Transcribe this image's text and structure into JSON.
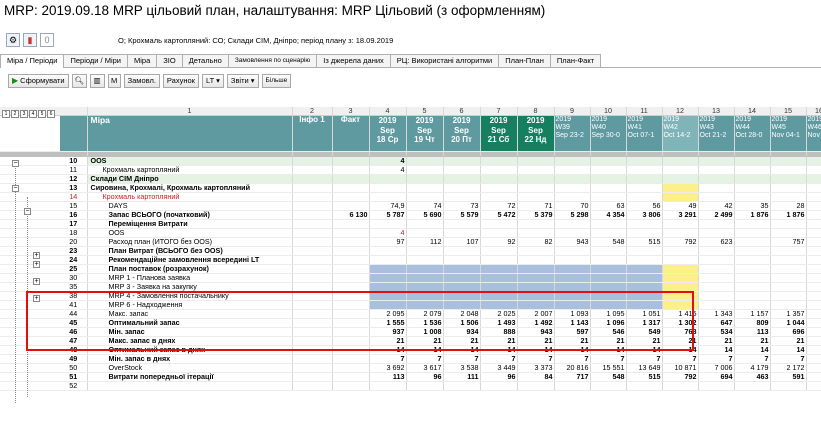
{
  "window": {
    "title": "MRP: 2019.09.18 MRP цільовий план, налаштування: MRP Цільовий (з оформленням)"
  },
  "toolbar_top": {
    "count": "0",
    "info": "О; Крохмаль картопляний: СО; Склади СІМ, Дніпро; період плану з: 18.09.2019"
  },
  "tabs": [
    "Міра / Періоди",
    "Періоди / Міри",
    "Міра",
    "ЗІО",
    "Детально",
    "Замовлення по сценарію",
    "Із джерела даних",
    "РЦ: Використані алгоритми",
    "План-План",
    "План-Факт"
  ],
  "toolbar2": {
    "form": "Сформувати",
    "order": "Замовл.",
    "invoice": "Рахунок",
    "lt": "LT",
    "reports": "Звіти",
    "more": "Більше"
  },
  "levels": [
    "1",
    "2",
    "3",
    "4",
    "5",
    "6"
  ],
  "grid": {
    "col_numbers": [
      "",
      "1",
      "2",
      "3",
      "4",
      "5",
      "6",
      "7",
      "8",
      "9",
      "10",
      "11",
      "12",
      "13",
      "14",
      "15",
      "16"
    ],
    "header": {
      "measure": "Міра",
      "info": "Інфо 1",
      "fact": "Факт",
      "days": [
        {
          "y": "2019",
          "m": "Sep",
          "d": "18 Ср"
        },
        {
          "y": "2019",
          "m": "Sep",
          "d": "19 Чт"
        },
        {
          "y": "2019",
          "m": "Sep",
          "d": "20 Пт"
        },
        {
          "y": "2019",
          "m": "Sep",
          "d": "21 Сб"
        },
        {
          "y": "2019",
          "m": "Sep",
          "d": "22 Нд"
        }
      ],
      "weeks": [
        {
          "y": "2019",
          "w": "W39",
          "r": "Sep 23-2"
        },
        {
          "y": "2019",
          "w": "W40",
          "r": "Sep 30-0"
        },
        {
          "y": "2019",
          "w": "W41",
          "r": "Oct 07-1"
        },
        {
          "y": "2019",
          "w": "W42",
          "r": "Oct 14-2"
        },
        {
          "y": "2019",
          "w": "W43",
          "r": "Oct 21-2"
        },
        {
          "y": "2019",
          "w": "W44",
          "r": "Oct 28-0"
        },
        {
          "y": "2019",
          "w": "W45",
          "r": "Nov 04-1"
        },
        {
          "y": "2019",
          "w": "W46",
          "r": "Nov 1"
        }
      ]
    },
    "rows": [
      {
        "n": "10",
        "m": "OOS",
        "c": [
          "",
          "",
          "4",
          "",
          "",
          "",
          "",
          "",
          "",
          "",
          "",
          "",
          "",
          "",
          "",
          ""
        ],
        "cls": "grp bold"
      },
      {
        "n": "11",
        "m": "Крохмаль картопляний",
        "c": [
          "",
          "",
          "4",
          "",
          "",
          "",
          "",
          "",
          "",
          "",
          "",
          "",
          "",
          "",
          "",
          ""
        ],
        "ind": 2
      },
      {
        "n": "12",
        "m": "Склади СІМ Дніпро",
        "c": [
          "",
          "",
          "",
          "",
          "",
          "",
          "",
          "",
          "",
          "",
          "",
          "",
          "",
          "",
          "",
          ""
        ],
        "cls": "grp bold"
      },
      {
        "n": "13",
        "m": "Сировина, Крохмалі, Крохмаль картопляний",
        "c": [
          "",
          "",
          "",
          "",
          "",
          "",
          "",
          "",
          "",
          "",
          "",
          "",
          "",
          "",
          "",
          ""
        ],
        "cls": "bold dash"
      },
      {
        "n": "14",
        "m": "Крохмаль картопляний",
        "c": [
          "",
          "",
          "",
          "",
          "",
          "",
          "",
          "",
          "",
          "",
          "",
          "",
          "",
          "",
          "",
          ""
        ],
        "cls": "red",
        "ind": 2
      },
      {
        "n": "15",
        "m": "DAYS",
        "c": [
          "",
          "",
          "74,9",
          "74",
          "73",
          "72",
          "71",
          "70",
          "63",
          "56",
          "49",
          "42",
          "35",
          "28",
          "",
          ""
        ],
        "ind": 3
      },
      {
        "n": "16",
        "m": "Запас ВСЬОГО (початковий)",
        "c": [
          "",
          "6 130",
          "5 787",
          "5 690",
          "5 579",
          "5 472",
          "5 379",
          "5 298",
          "4 354",
          "3 806",
          "3 291",
          "2 499",
          "1 876",
          "1 876",
          "1 1",
          ""
        ],
        "cls": "bold",
        "ind": 3
      },
      {
        "n": "17",
        "m": "Переміщення Витрати",
        "c": [
          "",
          "",
          "",
          "",
          "",
          "",
          "",
          "",
          "",
          "",
          "",
          "",
          "",
          "",
          "",
          ""
        ],
        "cls": "bold",
        "ind": 3
      },
      {
        "n": "18",
        "m": "OOS",
        "c": [
          "",
          "",
          "4",
          "",
          "",
          "",
          "",
          "",
          "",
          "",
          "",
          "",
          "",
          "",
          "",
          ""
        ],
        "ind": 3
      },
      {
        "n": "20",
        "m": "Расход план (ИТОГО без OOS)",
        "c": [
          "",
          "",
          "97",
          "112",
          "107",
          "92",
          "82",
          "943",
          "548",
          "515",
          "792",
          "623",
          "",
          "757",
          "3",
          ""
        ],
        "ind": 3
      },
      {
        "n": "23",
        "m": "План Витрат (ВСЬОГО без OOS)",
        "c": [
          "",
          "",
          "",
          "",
          "",
          "",
          "",
          "",
          "",
          "",
          "",
          "",
          "",
          "",
          "",
          ""
        ],
        "cls": "bold",
        "ind": 3
      },
      {
        "n": "24",
        "m": "Рекомендаційне замовлення всередині LT",
        "c": [
          "",
          "",
          "",
          "",
          "",
          "",
          "",
          "",
          "",
          "",
          "",
          "",
          "",
          "",
          "",
          ""
        ],
        "cls": "bold",
        "ind": 3
      },
      {
        "n": "25",
        "m": "План поставок (розрахунок)",
        "c": [
          "",
          "",
          "",
          "",
          "",
          "",
          "",
          "",
          "",
          "",
          "",
          "",
          "",
          "",
          "",
          "1 0"
        ],
        "cls": "bold",
        "ind": 3
      },
      {
        "n": "30",
        "m": "MRP 1 - Планова заявка",
        "c": [
          "",
          "",
          "",
          "",
          "",
          "",
          "",
          "",
          "",
          "",
          "",
          "",
          "",
          "",
          "",
          ""
        ],
        "ind": 3
      },
      {
        "n": "35",
        "m": "MRP 3 - Заявка на закупку",
        "c": [
          "",
          "",
          "",
          "",
          "",
          "",
          "",
          "",
          "",
          "",
          "",
          "",
          "",
          "",
          "",
          ""
        ],
        "ind": 3
      },
      {
        "n": "38",
        "m": "MRP 4 - Замовлення постачальнику",
        "c": [
          "",
          "",
          "",
          "",
          "",
          "",
          "",
          "",
          "",
          "",
          "",
          "",
          "",
          "",
          "",
          ""
        ],
        "ind": 3
      },
      {
        "n": "41",
        "m": "MRP 6 - Надходження",
        "c": [
          "",
          "",
          "",
          "",
          "",
          "",
          "",
          "",
          "",
          "",
          "",
          "",
          "",
          "",
          "",
          ""
        ],
        "ind": 3
      },
      {
        "n": "44",
        "m": "Макс. запас",
        "c": [
          "",
          "",
          "2 095",
          "2 079",
          "2 048",
          "2 025",
          "2 007",
          "1 093",
          "1 095",
          "1 051",
          "1 415",
          "1 343",
          "1 157",
          "1 357",
          "1 1",
          ""
        ],
        "ind": 3
      },
      {
        "n": "45",
        "m": "Оптимальний запас",
        "c": [
          "",
          "",
          "1 555",
          "1 536",
          "1 506",
          "1 493",
          "1 492",
          "1 143",
          "1 096",
          "1 317",
          "1 302",
          "647",
          "809",
          "1 044",
          "6",
          ""
        ],
        "cls": "bold",
        "ind": 3
      },
      {
        "n": "46",
        "m": "Мін. запас",
        "c": [
          "",
          "",
          "937",
          "1 008",
          "934",
          "888",
          "943",
          "597",
          "546",
          "549",
          "768",
          "534",
          "113",
          "696",
          "3",
          ""
        ],
        "cls": "bold",
        "ind": 3
      },
      {
        "n": "47",
        "m": "Макс. запас в днях",
        "c": [
          "",
          "",
          "21",
          "21",
          "21",
          "21",
          "21",
          "21",
          "21",
          "21",
          "21",
          "21",
          "21",
          "21",
          "",
          ""
        ],
        "cls": "bold",
        "ind": 3
      },
      {
        "n": "48",
        "m": "Оптимальний запас в днях",
        "c": [
          "",
          "",
          "14",
          "14",
          "14",
          "14",
          "14",
          "14",
          "14",
          "14",
          "14",
          "14",
          "14",
          "14",
          "",
          ""
        ],
        "cls": "bold",
        "ind": 3
      },
      {
        "n": "49",
        "m": "Мін. запас в днях",
        "c": [
          "",
          "",
          "7",
          "7",
          "7",
          "7",
          "7",
          "7",
          "7",
          "7",
          "7",
          "7",
          "7",
          "7",
          "",
          ""
        ],
        "cls": "bold",
        "ind": 3
      },
      {
        "n": "50",
        "m": "OverStock",
        "c": [
          "",
          "",
          "3 692",
          "3 617",
          "3 538",
          "3 449",
          "3 373",
          "20 816",
          "15 551",
          "13 649",
          "10 871",
          "7 006",
          "4 179",
          "2 172",
          "",
          ""
        ],
        "ind": 3
      },
      {
        "n": "51",
        "m": "Витрати попередньої ітерації",
        "c": [
          "",
          "",
          "113",
          "96",
          "111",
          "96",
          "84",
          "717",
          "548",
          "515",
          "792",
          "694",
          "463",
          "591",
          "2",
          ""
        ],
        "cls": "bold",
        "ind": 3
      },
      {
        "n": "52",
        "m": "",
        "c": [
          "",
          "",
          "",
          "",
          "",
          "",
          "",
          "",
          "",
          "",
          "",
          "",
          "",
          "",
          "",
          ""
        ]
      }
    ]
  }
}
